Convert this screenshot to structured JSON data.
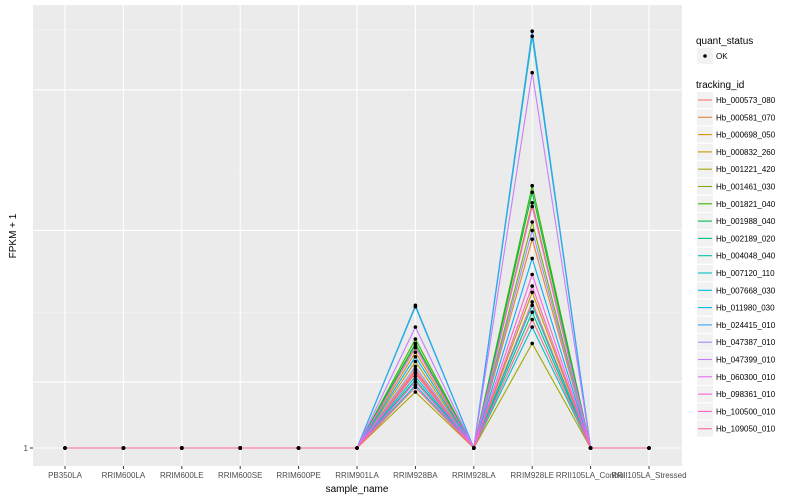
{
  "chart_data": {
    "type": "line",
    "title": "",
    "xlabel": "sample_name",
    "ylabel": "FPKM + 1",
    "y_tick_labels": [
      "1"
    ],
    "y_scale": "log",
    "grid": true,
    "legend_position": "right",
    "categories": [
      "PB350LA",
      "RRIM600LA",
      "RRIM600LE",
      "RRIM600SE",
      "RRIM600PE",
      "RRIM901LA",
      "RRIM928BA",
      "RRIM928LA",
      "RRIM928LE",
      "RRII105LA_Control",
      "RRII105LA_Stressed"
    ],
    "point_legend": {
      "title": "quant_status",
      "entries": [
        "OK"
      ]
    },
    "series_legend_title": "tracking_id",
    "series": [
      {
        "name": "Hb_000573_080",
        "color": "#F8766D",
        "values": [
          1,
          1,
          1,
          1,
          1,
          1,
          1.58,
          1,
          2.45,
          1,
          1
        ]
      },
      {
        "name": "Hb_000581_070",
        "color": "#EA8331",
        "values": [
          1,
          1,
          1,
          1,
          1,
          1,
          1.62,
          1,
          3.6,
          1,
          1
        ]
      },
      {
        "name": "Hb_000698_050",
        "color": "#D89000",
        "values": [
          1,
          1,
          1,
          1,
          1,
          1,
          1.8,
          1,
          4.5,
          1,
          1
        ]
      },
      {
        "name": "Hb_000832_260",
        "color": "#C09B00",
        "values": [
          1,
          1,
          1,
          1,
          1,
          1,
          1.7,
          1,
          2.6,
          1,
          1
        ]
      },
      {
        "name": "Hb_001221_420",
        "color": "#A3A500",
        "values": [
          1,
          1,
          1,
          1,
          1,
          1,
          1.41,
          1,
          1.9,
          1,
          1
        ]
      },
      {
        "name": "Hb_001461_030",
        "color": "#7CAE00",
        "values": [
          1,
          1,
          1,
          1,
          1,
          1,
          1.88,
          1,
          4.0,
          1,
          1
        ]
      },
      {
        "name": "Hb_001821_040",
        "color": "#39B600",
        "values": [
          1,
          1,
          1,
          1,
          1,
          1,
          1.95,
          1,
          5.0,
          1,
          1
        ]
      },
      {
        "name": "Hb_001988_040",
        "color": "#00BB4E",
        "values": [
          1,
          1,
          1,
          1,
          1,
          1,
          1.9,
          1,
          4.8,
          1,
          1
        ]
      },
      {
        "name": "Hb_002189_020",
        "color": "#00BF7D",
        "values": [
          1,
          1,
          1,
          1,
          1,
          1,
          1.52,
          1,
          2.3,
          1,
          1
        ]
      },
      {
        "name": "Hb_004048_040",
        "color": "#00C1A3",
        "values": [
          1,
          1,
          1,
          1,
          1,
          1,
          2.4,
          1,
          12.5,
          1,
          1
        ]
      },
      {
        "name": "Hb_007120_110",
        "color": "#00BFC4",
        "values": [
          1,
          1,
          1,
          1,
          1,
          1,
          1.47,
          1,
          2.1,
          1,
          1
        ]
      },
      {
        "name": "Hb_007668_030",
        "color": "#00BAE0",
        "values": [
          1,
          1,
          1,
          1,
          1,
          1,
          1.55,
          1,
          2.4,
          1,
          1
        ]
      },
      {
        "name": "Hb_011980_030",
        "color": "#00B0F6",
        "values": [
          1,
          1,
          1,
          1,
          1,
          1,
          1.75,
          1,
          3.2,
          1,
          1
        ]
      },
      {
        "name": "Hb_024415_010",
        "color": "#35A2FF",
        "values": [
          1,
          1,
          1,
          1,
          1,
          1,
          2.38,
          1,
          12.9,
          1,
          1
        ]
      },
      {
        "name": "Hb_047387_010",
        "color": "#9590FF",
        "values": [
          1,
          1,
          1,
          1,
          1,
          1,
          1.65,
          1,
          3.8,
          1,
          1
        ]
      },
      {
        "name": "Hb_047399_010",
        "color": "#C77CFF",
        "values": [
          1,
          1,
          1,
          1,
          1,
          1,
          2.1,
          1,
          10.0,
          1,
          1
        ]
      },
      {
        "name": "Hb_060300_010",
        "color": "#E76BF3",
        "values": [
          1,
          1,
          1,
          1,
          1,
          1,
          1.85,
          1,
          4.4,
          1,
          1
        ]
      },
      {
        "name": "Hb_098361_010",
        "color": "#FA62DB",
        "values": [
          1,
          1,
          1,
          1,
          1,
          1,
          1.5,
          1,
          2.9,
          1,
          1
        ]
      },
      {
        "name": "Hb_100500_010",
        "color": "#FF62BC",
        "values": [
          1,
          1,
          1,
          1,
          1,
          1,
          1.6,
          1,
          2.7,
          1,
          1
        ]
      },
      {
        "name": "Hb_109050_010",
        "color": "#FF6C91",
        "values": [
          1,
          1,
          1,
          1,
          1,
          1,
          1.45,
          1,
          2.2,
          1,
          1
        ]
      }
    ]
  }
}
